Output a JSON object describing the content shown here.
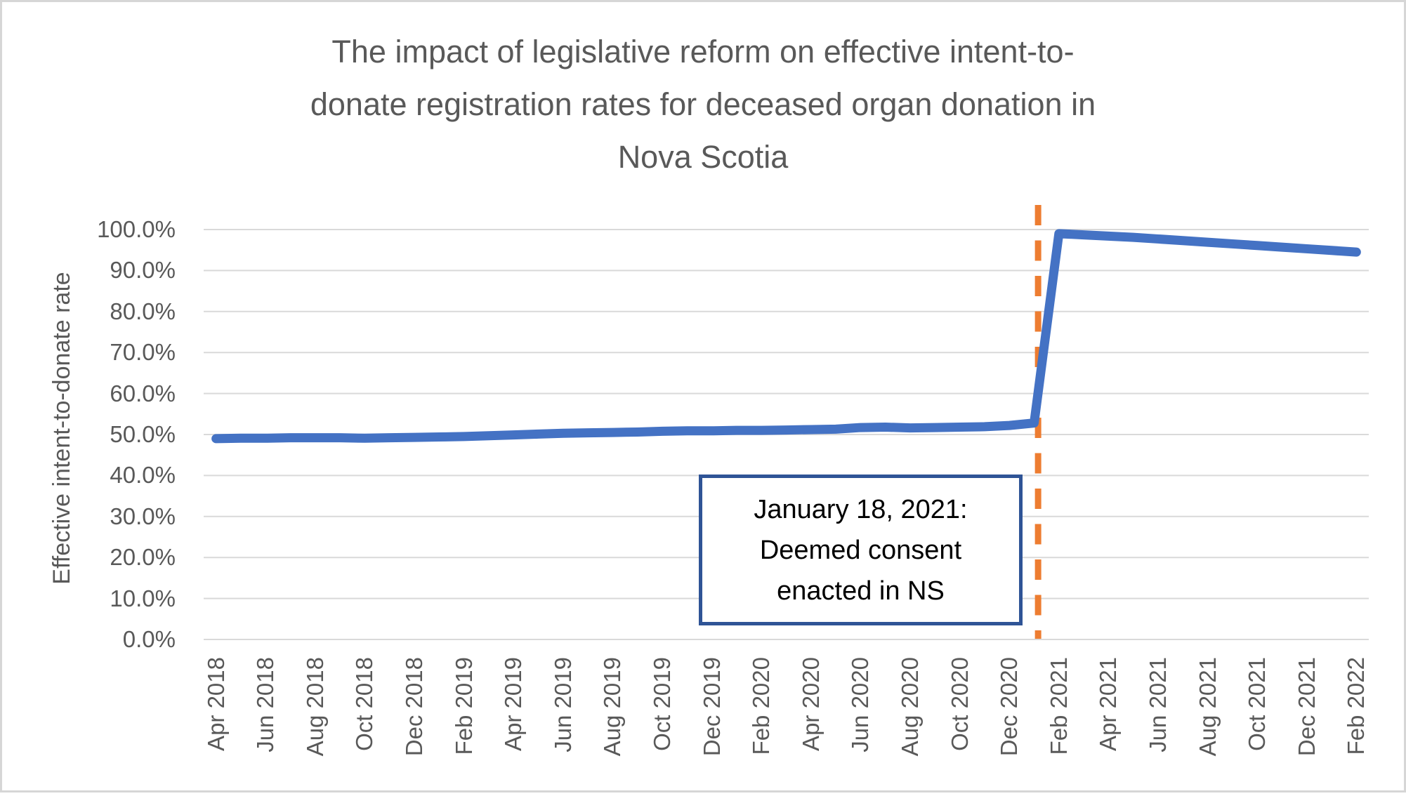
{
  "chart": {
    "title_lines": [
      "The impact of legislative reform on effective intent-to-",
      "donate registration rates for deceased organ donation in",
      "Nova Scotia"
    ],
    "y_axis_label": "Effective intent-to-donate rate"
  },
  "annotation": {
    "lines": [
      "January 18, 2021:",
      "Deemed consent",
      "enacted in NS"
    ]
  },
  "chart_data": {
    "type": "line",
    "title": "The impact of legislative reform on effective intent-to-donate registration rates for deceased organ donation in Nova Scotia",
    "xlabel": "",
    "ylabel": "Effective intent-to-donate rate",
    "x": [
      "Apr 2018",
      "May 2018",
      "Jun 2018",
      "Jul 2018",
      "Aug 2018",
      "Sep 2018",
      "Oct 2018",
      "Nov 2018",
      "Dec 2018",
      "Jan 2019",
      "Feb 2019",
      "Mar 2019",
      "Apr 2019",
      "May 2019",
      "Jun 2019",
      "Jul 2019",
      "Aug 2019",
      "Sep 2019",
      "Oct 2019",
      "Nov 2019",
      "Dec 2019",
      "Jan 2020",
      "Feb 2020",
      "Mar 2020",
      "Apr 2020",
      "May 2020",
      "Jun 2020",
      "Jul 2020",
      "Aug 2020",
      "Sep 2020",
      "Oct 2020",
      "Nov 2020",
      "Dec 2020",
      "Jan 2021",
      "Feb 2021",
      "Mar 2021",
      "Apr 2021",
      "May 2021",
      "Jun 2021",
      "Jul 2021",
      "Aug 2021",
      "Sep 2021",
      "Oct 2021",
      "Nov 2021",
      "Dec 2021",
      "Jan 2022",
      "Feb 2022"
    ],
    "series": [
      {
        "name": "Effective intent-to-donate rate (%)",
        "values": [
          49.0,
          49.1,
          49.1,
          49.2,
          49.2,
          49.2,
          49.1,
          49.2,
          49.3,
          49.4,
          49.5,
          49.7,
          49.9,
          50.1,
          50.3,
          50.4,
          50.5,
          50.6,
          50.8,
          50.9,
          50.9,
          51.0,
          51.0,
          51.1,
          51.2,
          51.3,
          51.7,
          51.8,
          51.6,
          51.7,
          51.8,
          51.9,
          52.2,
          52.8,
          99.0,
          98.7,
          98.4,
          98.1,
          97.7,
          97.3,
          96.9,
          96.5,
          96.1,
          95.7,
          95.3,
          94.9,
          94.5
        ]
      }
    ],
    "ylim": [
      0,
      100
    ],
    "y_tick_step": 10,
    "y_tick_labels": [
      "0.0%",
      "10.0%",
      "20.0%",
      "30.0%",
      "40.0%",
      "50.0%",
      "60.0%",
      "70.0%",
      "80.0%",
      "90.0%",
      "100.0%"
    ],
    "x_tick_interval": 2,
    "x_tick_labels": [
      "Apr 2018",
      "Jun 2018",
      "Aug 2018",
      "Oct 2018",
      "Dec 2018",
      "Feb 2019",
      "Apr 2019",
      "Jun 2019",
      "Aug 2019",
      "Oct 2019",
      "Dec 2019",
      "Feb 2020",
      "Apr 2020",
      "Jun 2020",
      "Aug 2020",
      "Oct 2020",
      "Dec 2020",
      "Feb 2021",
      "Apr 2021",
      "Jun 2021",
      "Aug 2021",
      "Oct 2021",
      "Dec 2021",
      "Feb 2022"
    ],
    "grid": true,
    "legend": false,
    "event_line": {
      "x_index": 33.16
    },
    "colors": {
      "series": "#4472C4",
      "event_line": "#ED7D31",
      "annotation_border": "#2F5496",
      "text": "#595959",
      "gridline": "#D9D9D9"
    }
  }
}
